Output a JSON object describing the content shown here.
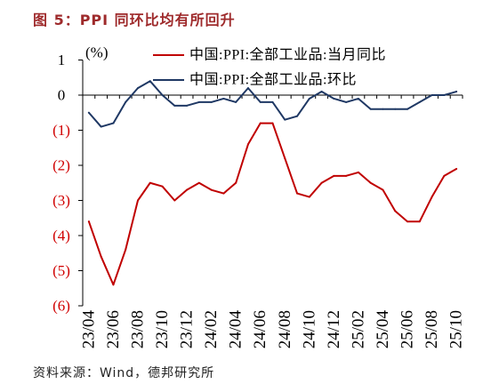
{
  "title": "图 5：PPI 同环比均有所回升",
  "title_color": "#9E2A2B",
  "source": "资料来源：Wind，德邦研究所",
  "chart_data": {
    "type": "line",
    "y_unit": "(%)",
    "x_tick_labels": [
      "23/04",
      "23/06",
      "23/08",
      "23/10",
      "23/12",
      "24/02",
      "24/04",
      "24/06",
      "24/08",
      "24/10",
      "24/12",
      "25/02",
      "25/04",
      "25/06",
      "25/08",
      "25/10"
    ],
    "ylim": [
      -6,
      1
    ],
    "y_ticks": [
      1,
      0,
      -1,
      -2,
      -3,
      -4,
      -5,
      -6
    ],
    "y_tick_labels": [
      "1",
      "0",
      "(1)",
      "(2)",
      "(3)",
      "(4)",
      "(5)",
      "(6)"
    ],
    "positive_label_color": "#000000",
    "negative_label_color": "#D00000",
    "grid": false,
    "legend": "top",
    "series": [
      {
        "name": "中国:PPI:全部工业品:当月同比",
        "color": "#C00000",
        "values": [
          -3.6,
          -4.6,
          -5.4,
          -4.4,
          -3.0,
          -2.5,
          -2.6,
          -3.0,
          -2.7,
          -2.5,
          -2.7,
          -2.8,
          -2.5,
          -1.4,
          -0.8,
          -0.8,
          -1.8,
          -2.8,
          -2.9,
          -2.5,
          -2.3,
          -2.3,
          -2.2,
          -2.5,
          -2.7,
          -3.3,
          -3.6,
          -3.6,
          -2.9,
          -2.3,
          -2.1
        ]
      },
      {
        "name": "中国:PPI:全部工业品:环比",
        "color": "#1F3864",
        "values": [
          -0.5,
          -0.9,
          -0.8,
          -0.2,
          0.2,
          0.4,
          0.0,
          -0.3,
          -0.3,
          -0.2,
          -0.2,
          -0.1,
          -0.2,
          0.2,
          -0.2,
          -0.2,
          -0.7,
          -0.6,
          -0.1,
          0.1,
          -0.1,
          -0.2,
          -0.1,
          -0.4,
          -0.4,
          -0.4,
          -0.4,
          -0.2,
          0.0,
          0.0,
          0.1
        ]
      }
    ]
  }
}
